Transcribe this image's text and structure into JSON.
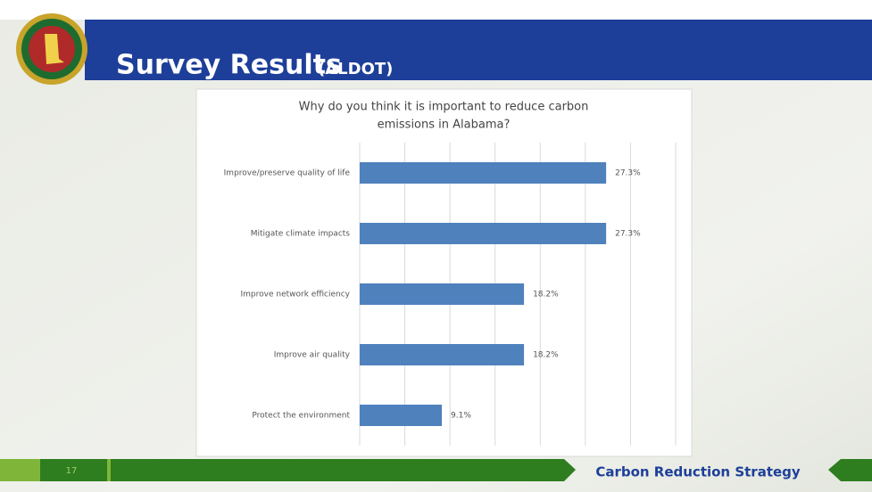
{
  "slide": {
    "title": "Survey Results",
    "title_suffix": "(ALDOT)",
    "page_number": "17",
    "footer": "Carbon Reduction Strategy"
  },
  "chart_data": {
    "type": "hbar",
    "title": [
      "Why do you think it is important to reduce carbon",
      "emissions in Alabama?"
    ],
    "categories": [
      "Improve/preserve quality of life",
      "Mitigate climate impacts",
      "Improve network efficiency",
      "Improve air quality",
      "Protect the environment"
    ],
    "values": [
      27.3,
      27.3,
      18.2,
      18.2,
      9.1
    ],
    "value_labels": [
      "27.3%",
      "27.3%",
      "18.2%",
      "18.2%",
      "9.1%"
    ],
    "color": "#4f81bd",
    "xlim": [
      0,
      35
    ],
    "xticks": [
      0,
      5,
      10,
      15,
      20,
      25,
      30,
      35
    ],
    "grid": true
  }
}
